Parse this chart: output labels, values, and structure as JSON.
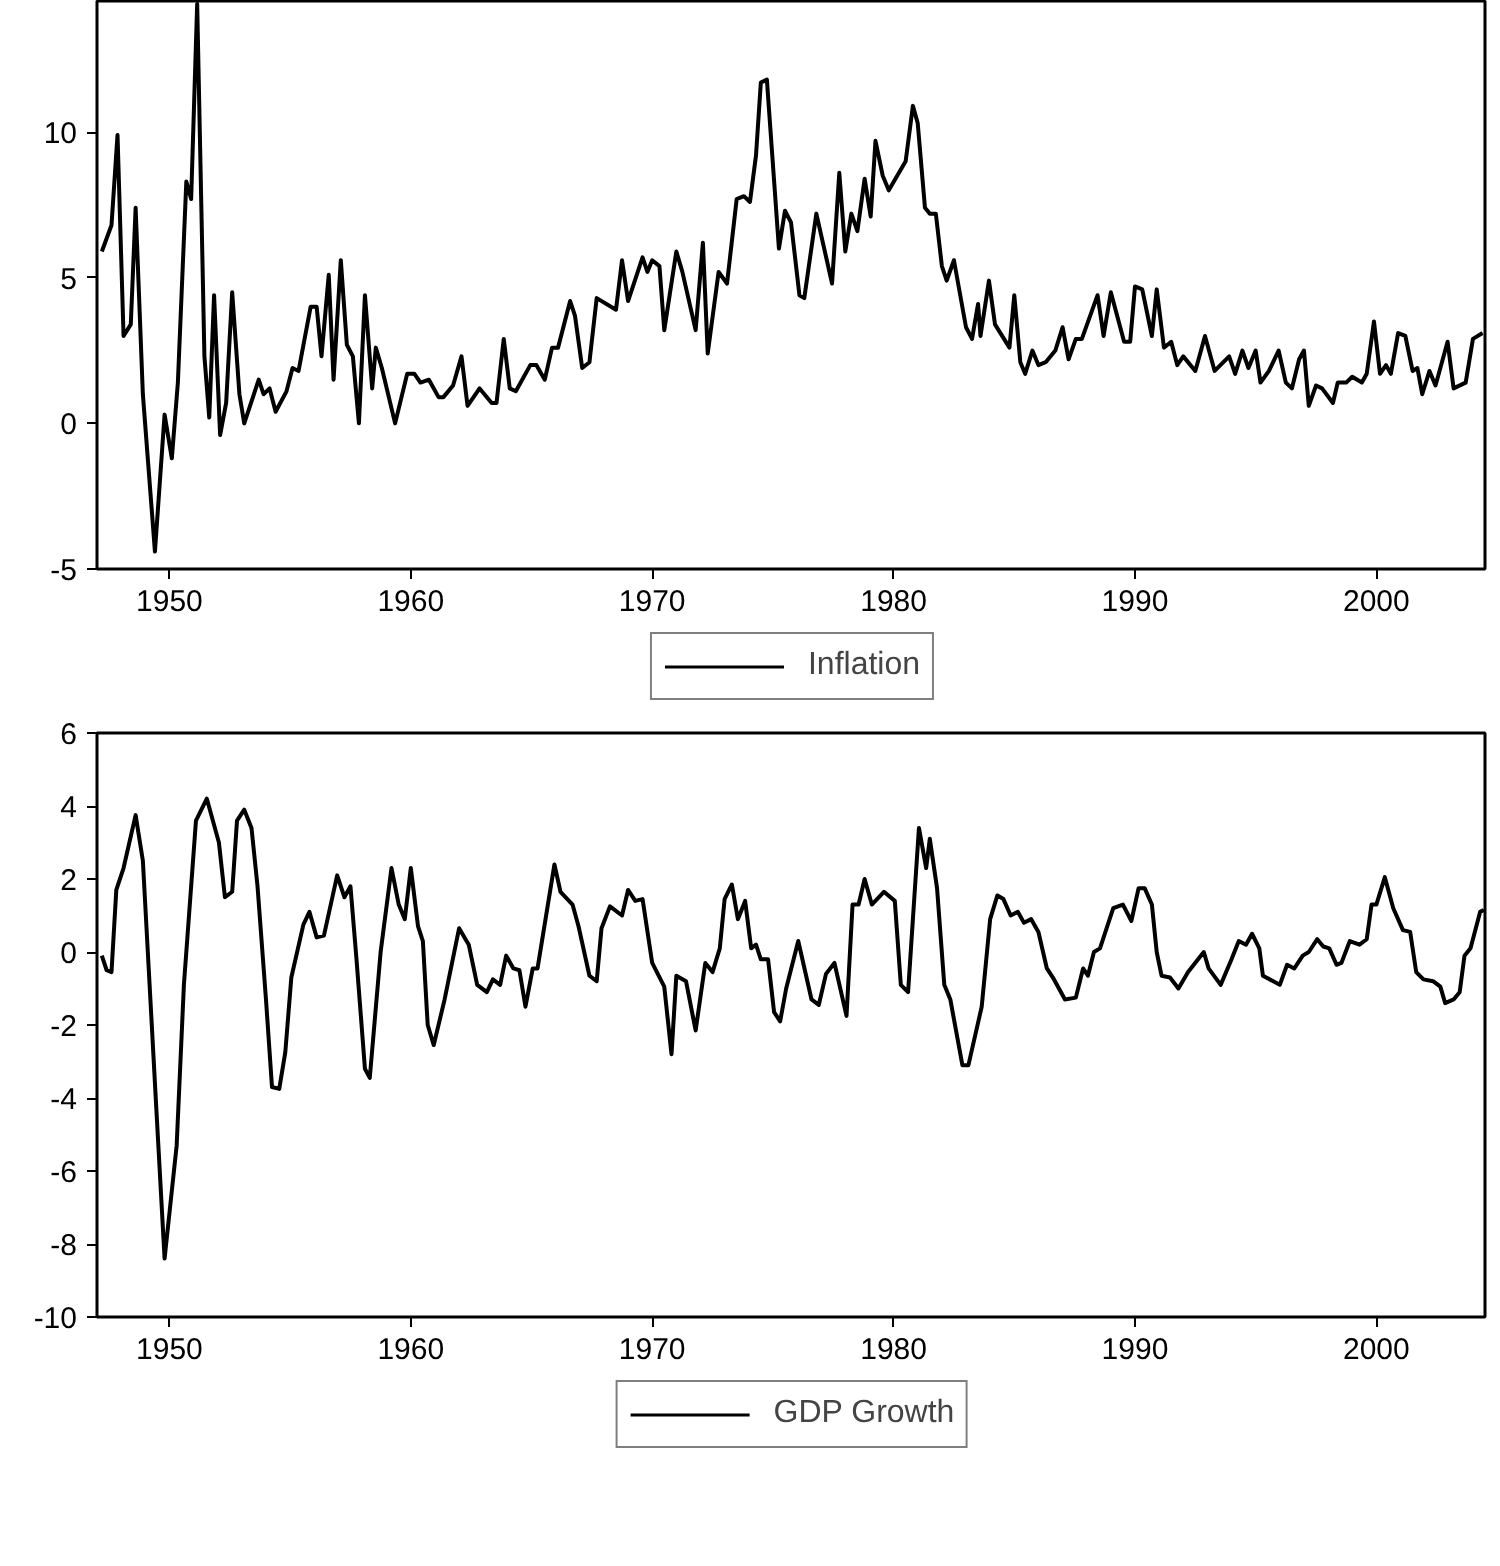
{
  "chart_data": [
    {
      "type": "line",
      "xlim": [
        1947,
        2004.5
      ],
      "xticks": [
        1950,
        1960,
        1970,
        1980,
        1990,
        2000
      ],
      "ylim": [
        -5,
        14.5
      ],
      "yticks": [
        -5,
        0,
        5,
        10
      ],
      "grid": false,
      "legend": "bottom",
      "series": [
        {
          "name": "Inflation",
          "color": "#000000",
          "x": [
            1947.2,
            1947.6,
            1947.85,
            1948.1,
            1948.4,
            1948.6,
            1948.9,
            1949.4,
            1949.8,
            1950.1,
            1950.35,
            1950.7,
            1950.9,
            1951.15,
            1951.45,
            1951.65,
            1951.85,
            1952.1,
            1952.35,
            1952.6,
            1952.9,
            1953.1,
            1953.7,
            1953.9,
            1954.15,
            1954.4,
            1954.85,
            1955.1,
            1955.35,
            1955.85,
            1956.1,
            1956.3,
            1956.6,
            1956.8,
            1957.1,
            1957.35,
            1957.6,
            1957.85,
            1958.1,
            1958.4,
            1958.55,
            1958.8,
            1959.35,
            1959.85,
            1960.15,
            1960.4,
            1960.75,
            1961.15,
            1961.35,
            1961.75,
            1962.1,
            1962.35,
            1962.85,
            1963.35,
            1963.55,
            1963.85,
            1964.1,
            1964.35,
            1964.95,
            1965.2,
            1965.55,
            1965.85,
            1966.1,
            1966.6,
            1966.8,
            1967.1,
            1967.4,
            1967.7,
            1968.5,
            1968.75,
            1969.0,
            1969.6,
            1969.8,
            1970.0,
            1970.3,
            1970.5,
            1971.0,
            1971.25,
            1971.8,
            1972.1,
            1972.3,
            1972.75,
            1973.1,
            1973.5,
            1973.8,
            1974.05,
            1974.3,
            1974.5,
            1974.75,
            1975.25,
            1975.5,
            1975.75,
            1976.1,
            1976.3,
            1976.8,
            1977.45,
            1977.75,
            1978.0,
            1978.25,
            1978.5,
            1978.8,
            1979.05,
            1979.25,
            1979.55,
            1979.8,
            1980.5,
            1980.8,
            1981.0,
            1981.3,
            1981.5,
            1981.75,
            1982.0,
            1982.2,
            1982.5,
            1983.0,
            1983.25,
            1983.5,
            1983.6,
            1983.95,
            1984.2,
            1984.8,
            1985.0,
            1985.25,
            1985.45,
            1985.75,
            1986.0,
            1986.3,
            1986.7,
            1987.0,
            1987.25,
            1987.55,
            1987.8,
            1988.45,
            1988.7,
            1989.0,
            1989.55,
            1989.8,
            1990.0,
            1990.3,
            1990.7,
            1990.9,
            1991.2,
            1991.5,
            1991.75,
            1992.0,
            1992.5,
            1992.9,
            1993.3,
            1993.9,
            1994.15,
            1994.45,
            1994.7,
            1995.0,
            1995.2,
            1995.55,
            1995.95,
            1996.25,
            1996.5,
            1996.8,
            1997.0,
            1997.2,
            1997.5,
            1997.75,
            1998.2,
            1998.4,
            1998.75,
            1999.0,
            1999.4,
            1999.6,
            1999.9,
            2000.15,
            2000.4,
            2000.6,
            2000.9,
            2001.2,
            2001.5,
            2001.7,
            2001.9,
            2002.2,
            2002.45,
            2002.95,
            2003.2,
            2003.7,
            2004.0,
            2004.4
          ],
          "values": [
            5.9,
            6.8,
            9.9,
            3.0,
            3.4,
            7.4,
            1.0,
            -4.4,
            0.3,
            -1.2,
            1.4,
            8.3,
            7.7,
            14.4,
            2.3,
            0.2,
            4.4,
            -0.4,
            0.7,
            4.5,
            1.0,
            0.0,
            1.5,
            1.0,
            1.2,
            0.4,
            1.1,
            1.9,
            1.8,
            4.0,
            4.0,
            2.3,
            5.1,
            1.5,
            5.6,
            2.7,
            2.3,
            0.0,
            4.4,
            1.2,
            2.6,
            1.9,
            0.0,
            1.7,
            1.7,
            1.4,
            1.5,
            0.9,
            0.9,
            1.3,
            2.3,
            0.6,
            1.2,
            0.7,
            0.7,
            2.9,
            1.2,
            1.1,
            2.0,
            2.0,
            1.5,
            2.6,
            2.6,
            4.2,
            3.7,
            1.9,
            2.1,
            4.3,
            3.9,
            5.6,
            4.2,
            5.7,
            5.2,
            5.6,
            5.4,
            3.2,
            5.9,
            5.2,
            3.2,
            6.2,
            2.4,
            5.2,
            4.8,
            7.7,
            7.8,
            7.6,
            9.2,
            11.7,
            11.8,
            6.0,
            7.3,
            6.9,
            4.4,
            4.3,
            7.2,
            4.8,
            8.6,
            5.9,
            7.2,
            6.6,
            8.4,
            7.1,
            9.7,
            8.5,
            8.0,
            9.0,
            10.9,
            10.3,
            7.4,
            7.2,
            7.2,
            5.4,
            4.9,
            5.6,
            3.3,
            2.9,
            4.1,
            3.0,
            4.9,
            3.4,
            2.6,
            4.4,
            2.1,
            1.7,
            2.5,
            2.0,
            2.1,
            2.5,
            3.3,
            2.2,
            2.9,
            2.9,
            4.4,
            3.0,
            4.5,
            2.8,
            2.8,
            4.7,
            4.6,
            3.0,
            4.6,
            2.6,
            2.8,
            2.0,
            2.3,
            1.8,
            3.0,
            1.8,
            2.3,
            1.7,
            2.5,
            1.9,
            2.5,
            1.4,
            1.8,
            2.5,
            1.4,
            1.2,
            2.2,
            2.5,
            0.6,
            1.3,
            1.2,
            0.7,
            1.4,
            1.4,
            1.6,
            1.4,
            1.7,
            3.5,
            1.7,
            2.0,
            1.7,
            3.1,
            3.0,
            1.8,
            1.9,
            1.0,
            1.8,
            1.3,
            2.8,
            1.2,
            1.4,
            2.9,
            3.1
          ]
        }
      ]
    },
    {
      "type": "line",
      "xlim": [
        1947,
        2004.5
      ],
      "xticks": [
        1950,
        1960,
        1970,
        1980,
        1990,
        2000
      ],
      "ylim": [
        -10,
        6
      ],
      "yticks": [
        -10,
        -8,
        -6,
        -4,
        -2,
        0,
        2,
        4,
        6
      ],
      "grid": false,
      "legend": "bottom",
      "series": [
        {
          "name": "GDP Growth",
          "color": "#000000",
          "x": [
            1947.2,
            1947.4,
            1947.6,
            1947.8,
            1948.1,
            1948.6,
            1948.9,
            1949.45,
            1949.8,
            1950.3,
            1950.6,
            1951.1,
            1951.55,
            1952.05,
            1952.3,
            1952.6,
            1952.8,
            1953.1,
            1953.4,
            1953.65,
            1954.0,
            1954.25,
            1954.55,
            1954.8,
            1955.05,
            1955.55,
            1955.8,
            1956.1,
            1956.4,
            1956.95,
            1957.25,
            1957.5,
            1957.75,
            1958.1,
            1958.3,
            1958.75,
            1959.2,
            1959.5,
            1959.75,
            1960.0,
            1960.3,
            1960.5,
            1960.7,
            1960.95,
            1961.4,
            1962.0,
            1962.4,
            1962.75,
            1963.15,
            1963.4,
            1963.7,
            1963.95,
            1964.25,
            1964.5,
            1964.75,
            1965.05,
            1965.25,
            1965.95,
            1966.2,
            1966.7,
            1966.95,
            1967.4,
            1967.7,
            1967.9,
            1968.25,
            1968.75,
            1969.0,
            1969.3,
            1969.6,
            1970.0,
            1970.5,
            1970.8,
            1971.0,
            1971.4,
            1971.8,
            1972.2,
            1972.5,
            1972.8,
            1973.0,
            1973.3,
            1973.55,
            1973.85,
            1974.1,
            1974.3,
            1974.5,
            1974.8,
            1975.05,
            1975.3,
            1975.55,
            1976.05,
            1976.6,
            1976.9,
            1977.2,
            1977.55,
            1978.05,
            1978.3,
            1978.55,
            1978.8,
            1979.1,
            1979.6,
            1980.05,
            1980.3,
            1980.6,
            1981.05,
            1981.35,
            1981.5,
            1981.8,
            1982.1,
            1982.35,
            1982.85,
            1983.1,
            1983.65,
            1984.0,
            1984.3,
            1984.55,
            1984.85,
            1985.15,
            1985.4,
            1985.7,
            1986.0,
            1986.35,
            1986.6,
            1987.1,
            1987.55,
            1987.85,
            1988.05,
            1988.3,
            1988.55,
            1989.1,
            1989.5,
            1989.85,
            1990.15,
            1990.4,
            1990.7,
            1990.9,
            1991.1,
            1991.45,
            1991.8,
            1992.2,
            1992.85,
            1993.05,
            1993.55,
            1994.0,
            1994.3,
            1994.6,
            1994.85,
            1995.15,
            1995.3,
            1996.0,
            1996.3,
            1996.6,
            1996.95,
            1997.2,
            1997.55,
            1997.8,
            1998.05,
            1998.35,
            1998.55,
            1998.9,
            1999.3,
            1999.6,
            1999.8,
            2000.0,
            2000.35,
            2000.7,
            2001.1,
            2001.4,
            2001.65,
            2001.95,
            2002.35,
            2002.65,
            2002.85,
            2003.2,
            2003.45,
            2003.65,
            2003.9,
            2004.3,
            2004.45
          ],
          "values": [
            -0.1,
            -0.5,
            -0.55,
            1.7,
            2.3,
            3.75,
            2.5,
            -4.2,
            -8.4,
            -5.3,
            -0.9,
            3.6,
            4.2,
            3.0,
            1.5,
            1.65,
            3.6,
            3.9,
            3.4,
            1.8,
            -1.3,
            -3.7,
            -3.75,
            -2.75,
            -0.7,
            0.75,
            1.1,
            0.4,
            0.45,
            2.1,
            1.5,
            1.8,
            -0.2,
            -3.2,
            -3.45,
            0.0,
            2.3,
            1.3,
            0.9,
            2.3,
            0.7,
            0.3,
            -2.0,
            -2.55,
            -1.3,
            0.65,
            0.2,
            -0.9,
            -1.1,
            -0.75,
            -0.9,
            -0.1,
            -0.45,
            -0.5,
            -1.5,
            -0.45,
            -0.45,
            2.4,
            1.65,
            1.3,
            0.7,
            -0.65,
            -0.8,
            0.65,
            1.25,
            1.0,
            1.7,
            1.4,
            1.45,
            -0.3,
            -0.95,
            -2.8,
            -0.65,
            -0.8,
            -2.15,
            -0.3,
            -0.55,
            0.1,
            1.45,
            1.85,
            0.9,
            1.4,
            0.1,
            0.2,
            -0.2,
            -0.2,
            -1.65,
            -1.9,
            -1.0,
            0.3,
            -1.3,
            -1.45,
            -0.6,
            -0.3,
            -1.75,
            1.3,
            1.3,
            2.0,
            1.3,
            1.65,
            1.4,
            -0.9,
            -1.1,
            3.4,
            2.3,
            3.1,
            1.75,
            -0.9,
            -1.3,
            -3.1,
            -3.1,
            -1.5,
            0.9,
            1.55,
            1.45,
            1.0,
            1.1,
            0.8,
            0.9,
            0.55,
            -0.45,
            -0.7,
            -1.3,
            -1.25,
            -0.45,
            -0.65,
            0.0,
            0.1,
            1.2,
            1.3,
            0.85,
            1.75,
            1.75,
            1.3,
            0.0,
            -0.65,
            -0.7,
            -1.0,
            -0.55,
            0.0,
            -0.45,
            -0.9,
            -0.2,
            0.3,
            0.2,
            0.5,
            0.1,
            -0.65,
            -0.9,
            -0.35,
            -0.45,
            -0.1,
            0.0,
            0.35,
            0.15,
            0.1,
            -0.35,
            -0.3,
            0.3,
            0.2,
            0.35,
            1.3,
            1.3,
            2.05,
            1.2,
            0.6,
            0.55,
            -0.55,
            -0.75,
            -0.8,
            -0.95,
            -1.4,
            -1.3,
            -1.1,
            -0.1,
            0.1,
            1.1,
            1.15
          ]
        }
      ]
    }
  ]
}
